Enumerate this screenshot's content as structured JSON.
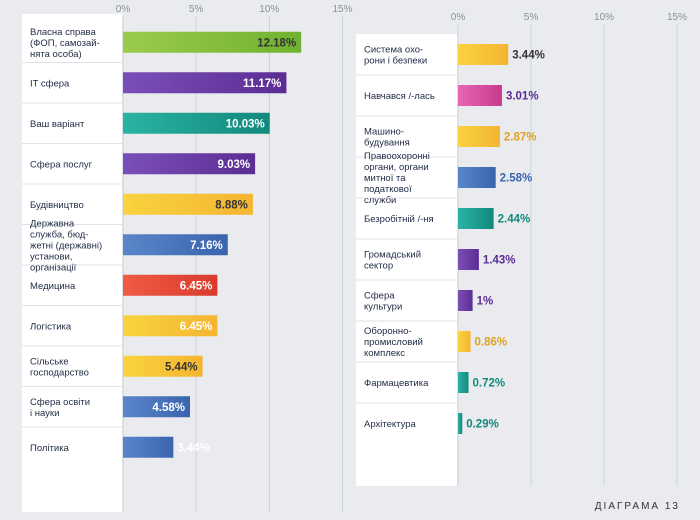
{
  "footer_label": "ДІАГРАМА 13",
  "chart_data": [
    {
      "type": "bar",
      "orientation": "horizontal",
      "xlim": [
        0,
        15
      ],
      "ticks": [
        "0%",
        "5%",
        "10%",
        "15%"
      ],
      "grid": true,
      "categories": [
        [
          "Власна справа",
          "(ФОП, самозай-",
          "нята особа)"
        ],
        [
          "IT сфера"
        ],
        [
          "Ваш варіант"
        ],
        [
          "Сфера послуг"
        ],
        [
          "Будівництво"
        ],
        [
          "Державна",
          "служба, бюд-",
          "жетні (державні)",
          "установи,",
          "організації"
        ],
        [
          "Медицина"
        ],
        [
          "Логістика"
        ],
        [
          "Сільське",
          "господарство"
        ],
        [
          "Сфера освіти",
          "і науки"
        ],
        [
          "Політика"
        ]
      ],
      "values": [
        12.18,
        11.17,
        10.03,
        9.03,
        8.88,
        7.16,
        6.45,
        6.45,
        5.44,
        4.58,
        3.44
      ],
      "labels": [
        "12.18%",
        "11.17%",
        "10.03%",
        "9.03%",
        "8.88%",
        "7.16%",
        "6.45%",
        "6.45%",
        "5.44%",
        "4.58%",
        "3.44%"
      ],
      "colors": [
        [
          "#9ccb4a",
          "#6fb22f"
        ],
        [
          "#7b4fb8",
          "#5b2d94"
        ],
        [
          "#2ab3a3",
          "#12897c"
        ],
        [
          "#7b4fb8",
          "#5b2d94"
        ],
        [
          "#f9d33f",
          "#f4b532"
        ],
        [
          "#5a86c9",
          "#3a64ae"
        ],
        [
          "#ef5c45",
          "#d93a2c"
        ],
        [
          "#f9d33f",
          "#f4b532"
        ],
        [
          "#f9d33f",
          "#f4b532"
        ],
        [
          "#5a86c9",
          "#3a64ae"
        ],
        [
          "#5a86c9",
          "#3a64ae"
        ]
      ],
      "label_colors": [
        "#333333",
        "#ffffff",
        "#ffffff",
        "#ffffff",
        "#333333",
        "#ffffff",
        "#ffffff",
        "#ffffff",
        "#333333",
        "#ffffff",
        "#ffffff"
      ]
    },
    {
      "type": "bar",
      "orientation": "horizontal",
      "xlim": [
        0,
        15
      ],
      "ticks": [
        "0%",
        "5%",
        "10%",
        "15%"
      ],
      "grid": true,
      "categories": [
        [
          "Система охо-",
          "рони і безпеки"
        ],
        [
          "Навчався /-лась"
        ],
        [
          "Машино-",
          "будування"
        ],
        [
          "Правоохоронні",
          "органи, органи",
          "митної та",
          "податкової",
          "служби"
        ],
        [
          "Безробітній /-ня"
        ],
        [
          "Громадський",
          "сектор"
        ],
        [
          "Сфера",
          "культури"
        ],
        [
          "Оборонно-",
          "промисловий",
          "комплекс"
        ],
        [
          "Фармацевтика"
        ],
        [
          "Архітектура"
        ]
      ],
      "values": [
        3.44,
        3.01,
        2.87,
        2.58,
        2.44,
        1.43,
        1,
        0.86,
        0.72,
        0.29
      ],
      "labels": [
        "3.44%",
        "3.01%",
        "2.87%",
        "2.58%",
        "2.44%",
        "1.43%",
        "1%",
        "0.86%",
        "0.72%",
        "0.29%"
      ],
      "colors": [
        [
          "#f9d33f",
          "#f4b532"
        ],
        [
          "#e766b5",
          "#c8398e"
        ],
        [
          "#f9d33f",
          "#f4b532"
        ],
        [
          "#5a86c9",
          "#3a64ae"
        ],
        [
          "#2ab3a3",
          "#12897c"
        ],
        [
          "#7b4fb8",
          "#5b2d94"
        ],
        [
          "#7b4fb8",
          "#5b2d94"
        ],
        [
          "#f9d33f",
          "#f4b532"
        ],
        [
          "#2ab3a3",
          "#12897c"
        ],
        [
          "#2ab3a3",
          "#12897c"
        ]
      ],
      "label_colors": [
        "#333333",
        "#5b2d94",
        "#e0a21f",
        "#3a64ae",
        "#12897c",
        "#5b2d94",
        "#5b2d94",
        "#e0a21f",
        "#12897c",
        "#12897c"
      ]
    }
  ]
}
